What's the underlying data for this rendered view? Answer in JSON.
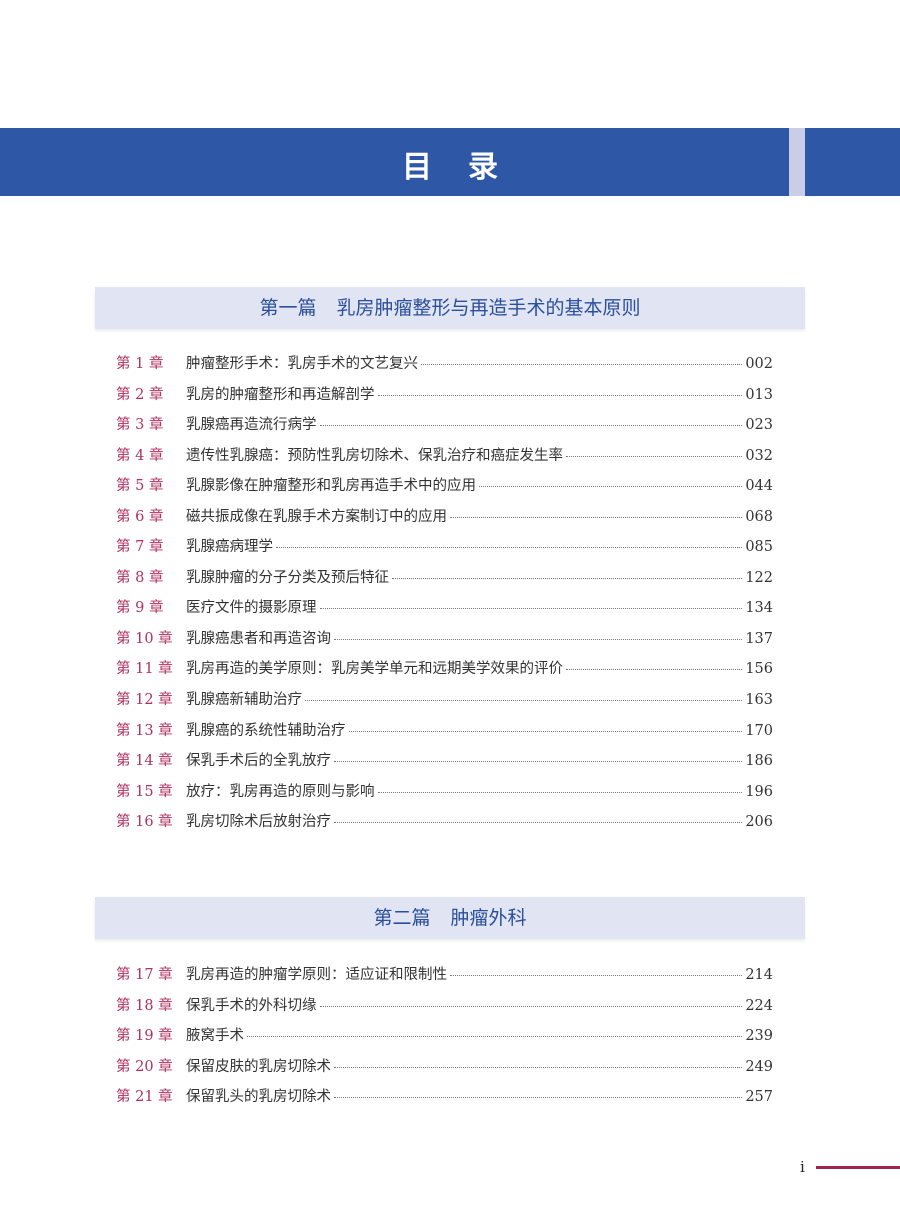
{
  "header": {
    "title": "目录"
  },
  "parts": [
    {
      "label": "第一篇",
      "title": "乳房肿瘤整形与再造手术的基本原则",
      "chapters": [
        {
          "label": "第 1 章",
          "title": "肿瘤整形手术：乳房手术的文艺复兴",
          "page": "002"
        },
        {
          "label": "第 2 章",
          "title": "乳房的肿瘤整形和再造解剖学",
          "page": "013"
        },
        {
          "label": "第 3 章",
          "title": "乳腺癌再造流行病学",
          "page": "023"
        },
        {
          "label": "第 4 章",
          "title": "遗传性乳腺癌：预防性乳房切除术、保乳治疗和癌症发生率",
          "page": "032"
        },
        {
          "label": "第 5 章",
          "title": "乳腺影像在肿瘤整形和乳房再造手术中的应用",
          "page": "044"
        },
        {
          "label": "第 6 章",
          "title": "磁共振成像在乳腺手术方案制订中的应用",
          "page": "068"
        },
        {
          "label": "第 7 章",
          "title": "乳腺癌病理学",
          "page": "085"
        },
        {
          "label": "第 8 章",
          "title": "乳腺肿瘤的分子分类及预后特征",
          "page": "122"
        },
        {
          "label": "第 9 章",
          "title": "医疗文件的摄影原理",
          "page": "134"
        },
        {
          "label": "第 10 章",
          "title": "乳腺癌患者和再造咨询",
          "page": "137"
        },
        {
          "label": "第 11 章",
          "title": "乳房再造的美学原则：乳房美学单元和远期美学效果的评价",
          "page": "156"
        },
        {
          "label": "第 12 章",
          "title": "乳腺癌新辅助治疗",
          "page": "163"
        },
        {
          "label": "第 13 章",
          "title": "乳腺癌的系统性辅助治疗",
          "page": "170"
        },
        {
          "label": "第 14 章",
          "title": "保乳手术后的全乳放疗",
          "page": "186"
        },
        {
          "label": "第 15 章",
          "title": "放疗：乳房再造的原则与影响",
          "page": "196"
        },
        {
          "label": "第 16 章",
          "title": "乳房切除术后放射治疗",
          "page": "206"
        }
      ]
    },
    {
      "label": "第二篇",
      "title": "肿瘤外科",
      "chapters": [
        {
          "label": "第 17 章",
          "title": "乳房再造的肿瘤学原则：适应证和限制性",
          "page": "214"
        },
        {
          "label": "第 18 章",
          "title": "保乳手术的外科切缘",
          "page": "224"
        },
        {
          "label": "第 19 章",
          "title": "腋窝手术",
          "page": "239"
        },
        {
          "label": "第 20 章",
          "title": "保留皮肤的乳房切除术",
          "page": "249"
        },
        {
          "label": "第 21 章",
          "title": "保留乳头的乳房切除术",
          "page": "257"
        }
      ]
    }
  ],
  "footer": {
    "page_number": "i"
  },
  "colors": {
    "header_blue": "#2e58a6",
    "part_bg": "#e1e4f2",
    "chapter_label": "#b0305f",
    "accent_line": "#a3204f"
  }
}
